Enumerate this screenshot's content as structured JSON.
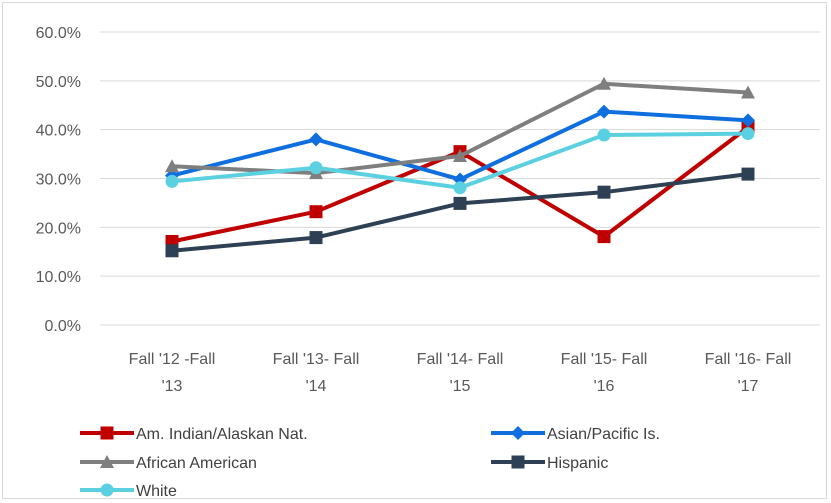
{
  "chart_data": {
    "type": "line",
    "title": "",
    "xlabel": "",
    "ylabel": "",
    "ylim": [
      0,
      0.6
    ],
    "y_ticks": [
      "0.0%",
      "10.0%",
      "20.0%",
      "30.0%",
      "40.0%",
      "50.0%",
      "60.0%"
    ],
    "grid": "horizontal",
    "legend_position": "bottom",
    "categories": [
      [
        "Fall '12 -Fall",
        "'13"
      ],
      [
        "Fall '13- Fall",
        "'14"
      ],
      [
        "Fall '14- Fall",
        "'15"
      ],
      [
        "Fall '15- Fall",
        "'16"
      ],
      [
        "Fall '16- Fall",
        "'17"
      ]
    ],
    "series": [
      {
        "name": "Am. Indian/Alaskan Nat.",
        "color": "#c00000",
        "marker": "square",
        "values": [
          0.171,
          0.232,
          0.355,
          0.181,
          0.405
        ]
      },
      {
        "name": "Asian/Pacific Is.",
        "color": "#0f6fde",
        "marker": "diamond",
        "values": [
          0.306,
          0.38,
          0.298,
          0.437,
          0.419
        ]
      },
      {
        "name": "African American",
        "color": "#7f7f7f",
        "marker": "triangle",
        "values": [
          0.325,
          0.311,
          0.346,
          0.494,
          0.476
        ]
      },
      {
        "name": "Hispanic",
        "color": "#2e4053",
        "marker": "square",
        "values": [
          0.152,
          0.179,
          0.249,
          0.272,
          0.309
        ]
      },
      {
        "name": "White",
        "color": "#5bd0e0",
        "marker": "circle",
        "values": [
          0.294,
          0.322,
          0.281,
          0.389,
          0.392
        ]
      }
    ]
  }
}
